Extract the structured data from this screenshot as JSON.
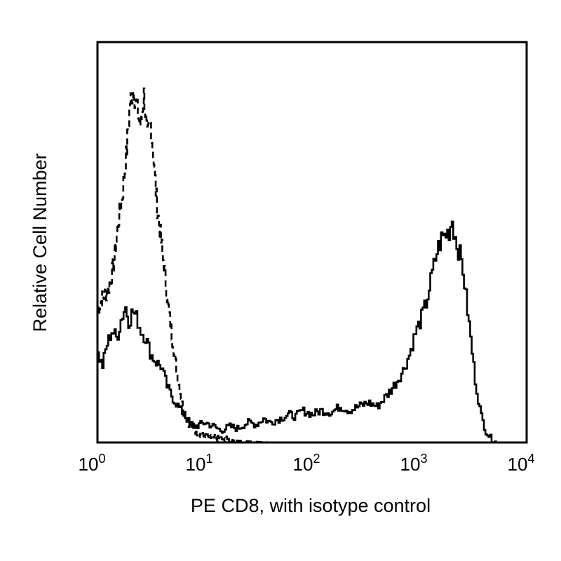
{
  "chart_data": {
    "type": "line",
    "title": "",
    "xlabel": "PE CD8, with isotype control",
    "ylabel": "Relative Cell Number",
    "x_scale": "log",
    "xlim": [
      1,
      10000
    ],
    "ylim": [
      0,
      100
    ],
    "grid": false,
    "legend": "none",
    "x_ticks": [
      {
        "base": "10",
        "exp": "0",
        "value": 1
      },
      {
        "base": "10",
        "exp": "1",
        "value": 10
      },
      {
        "base": "10",
        "exp": "2",
        "value": 100
      },
      {
        "base": "10",
        "exp": "3",
        "value": 1000
      },
      {
        "base": "10",
        "exp": "4",
        "value": 10000
      }
    ],
    "series": [
      {
        "style": "dashed",
        "color": "#000000",
        "points": [
          [
            1.0,
            33
          ],
          [
            1.1,
            36
          ],
          [
            1.25,
            38
          ],
          [
            1.4,
            44
          ],
          [
            1.55,
            55
          ],
          [
            1.7,
            62
          ],
          [
            1.85,
            72
          ],
          [
            2.0,
            85
          ],
          [
            2.15,
            88
          ],
          [
            2.3,
            84
          ],
          [
            2.5,
            79
          ],
          [
            2.7,
            87
          ],
          [
            2.9,
            76
          ],
          [
            3.1,
            80
          ],
          [
            3.3,
            72
          ],
          [
            3.55,
            60
          ],
          [
            3.8,
            53
          ],
          [
            4.1,
            45
          ],
          [
            4.5,
            35
          ],
          [
            5.0,
            25
          ],
          [
            5.6,
            16
          ],
          [
            6.2,
            9
          ],
          [
            7.0,
            5
          ],
          [
            8.0,
            3
          ],
          [
            9.0,
            2
          ],
          [
            10.0,
            1.5
          ],
          [
            13.0,
            1
          ],
          [
            17.0,
            0.6
          ],
          [
            25.0,
            0.3
          ],
          [
            40.0,
            0
          ]
        ]
      },
      {
        "style": "solid",
        "color": "#000000",
        "points": [
          [
            1.0,
            22
          ],
          [
            1.1,
            19
          ],
          [
            1.2,
            24
          ],
          [
            1.35,
            28
          ],
          [
            1.5,
            26
          ],
          [
            1.65,
            31
          ],
          [
            1.8,
            34
          ],
          [
            1.95,
            30
          ],
          [
            2.1,
            33
          ],
          [
            2.3,
            31
          ],
          [
            2.5,
            28
          ],
          [
            2.8,
            26
          ],
          [
            3.1,
            22
          ],
          [
            3.5,
            20
          ],
          [
            3.9,
            19
          ],
          [
            4.4,
            14
          ],
          [
            5.0,
            11
          ],
          [
            5.6,
            9
          ],
          [
            6.3,
            7
          ],
          [
            7.1,
            5
          ],
          [
            8.0,
            4
          ],
          [
            9.0,
            4.5
          ],
          [
            10.0,
            5
          ],
          [
            12.0,
            4
          ],
          [
            14.0,
            3
          ],
          [
            17.0,
            4
          ],
          [
            20.0,
            3.5
          ],
          [
            25.0,
            5
          ],
          [
            30.0,
            4.5
          ],
          [
            35.0,
            6
          ],
          [
            40.0,
            5
          ],
          [
            50.0,
            6
          ],
          [
            60.0,
            7
          ],
          [
            70.0,
            6.5
          ],
          [
            80.0,
            8
          ],
          [
            100,
            7
          ],
          [
            120,
            8
          ],
          [
            150,
            7.5
          ],
          [
            180,
            9
          ],
          [
            220,
            8
          ],
          [
            270,
            9
          ],
          [
            330,
            10
          ],
          [
            400,
            9
          ],
          [
            500,
            12
          ],
          [
            600,
            15
          ],
          [
            700,
            18
          ],
          [
            800,
            22
          ],
          [
            900,
            27
          ],
          [
            1000,
            30
          ],
          [
            1150,
            35
          ],
          [
            1300,
            42
          ],
          [
            1450,
            48
          ],
          [
            1600,
            51
          ],
          [
            1750,
            52
          ],
          [
            1900,
            53
          ],
          [
            2000,
            56
          ],
          [
            2100,
            52
          ],
          [
            2300,
            48
          ],
          [
            2500,
            44
          ],
          [
            2700,
            36
          ],
          [
            3000,
            25
          ],
          [
            3300,
            15
          ],
          [
            3700,
            7
          ],
          [
            4100,
            3
          ],
          [
            4600,
            1
          ],
          [
            5200,
            0
          ]
        ]
      }
    ]
  }
}
